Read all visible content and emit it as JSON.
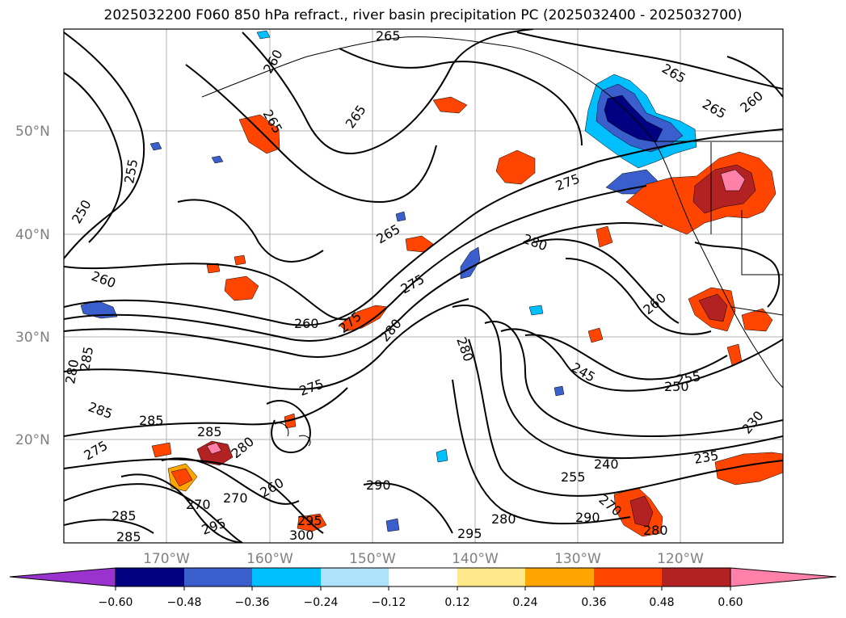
{
  "title": "2025032200 F060 850 hPa refract., river basin precipitation PC (2025032400 - 2025032700)",
  "map": {
    "latitude_labels": [
      "50°N",
      "40°N",
      "30°N",
      "20°N"
    ],
    "longitude_labels": [
      "170°W",
      "160°W",
      "150°W",
      "140°W",
      "130°W",
      "120°W"
    ],
    "contour_labels": [
      "265",
      "260",
      "265",
      "265",
      "255",
      "250",
      "265",
      "275",
      "280",
      "260",
      "265",
      "260",
      "275",
      "280",
      "280",
      "275",
      "285",
      "280",
      "285",
      "285",
      "285",
      "275",
      "280",
      "290",
      "280",
      "270",
      "260",
      "270",
      "295",
      "300",
      "295",
      "245",
      "255",
      "250",
      "240",
      "235",
      "255",
      "230",
      "270",
      "290",
      "280",
      "285",
      "285",
      "295",
      "260",
      "265",
      "275",
      "260"
    ],
    "colors": {
      "contour_line": "#000000",
      "grid_line": "#b0b0b0",
      "strong_positive": "#b22222",
      "positive": "#ff4500",
      "weak_positive": "#ffa500",
      "faint_positive": "#ffe98a",
      "faint_negative": "#ade2fa",
      "weak_negative": "#00bfff",
      "negative": "#3a5fcd",
      "strong_negative": "#000080",
      "extreme_positive": "#ff80a8",
      "extreme_negative": "#9a32cd"
    }
  },
  "colorbar": {
    "segment_colors": [
      "#9a32cd",
      "#000080",
      "#3a5fcd",
      "#00bfff",
      "#ade2fa",
      "#ffffff",
      "#ffe98a",
      "#ffa500",
      "#ff4500",
      "#b22222",
      "#ff80a8"
    ],
    "tick_labels": [
      "−0.60",
      "−0.48",
      "−0.36",
      "−0.24",
      "−0.12",
      "0.12",
      "0.24",
      "0.36",
      "0.48",
      "0.60"
    ]
  }
}
